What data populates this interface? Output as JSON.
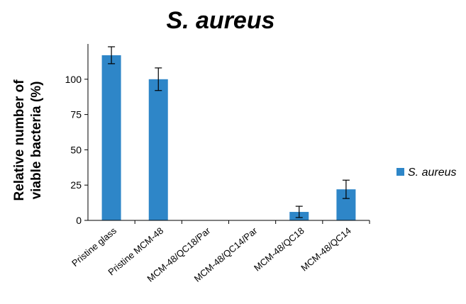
{
  "colors": {
    "bar": "#2E86C8",
    "axis": "#000000",
    "text": "#000000"
  },
  "chart_data": {
    "type": "bar",
    "title": "S. aureus",
    "xlabel": "",
    "ylabel": [
      "Relative number of",
      "viable bacteria (%)"
    ],
    "ylim": [
      0,
      125
    ],
    "yticks": [
      0,
      25,
      50,
      75,
      100
    ],
    "grid": false,
    "legend_position": "right",
    "categories": [
      "Pristine glass",
      "Pristine MCM-48",
      "MCM-48/QC18/Par",
      "MCM-48/QC14/Par",
      "MCM-48/QC18",
      "MCM-48/QC14"
    ],
    "series": [
      {
        "name": "S. aureus",
        "values": [
          117,
          100,
          0,
          0,
          6,
          22
        ],
        "errors": [
          6,
          8,
          0,
          0,
          4,
          6.5
        ]
      }
    ]
  }
}
